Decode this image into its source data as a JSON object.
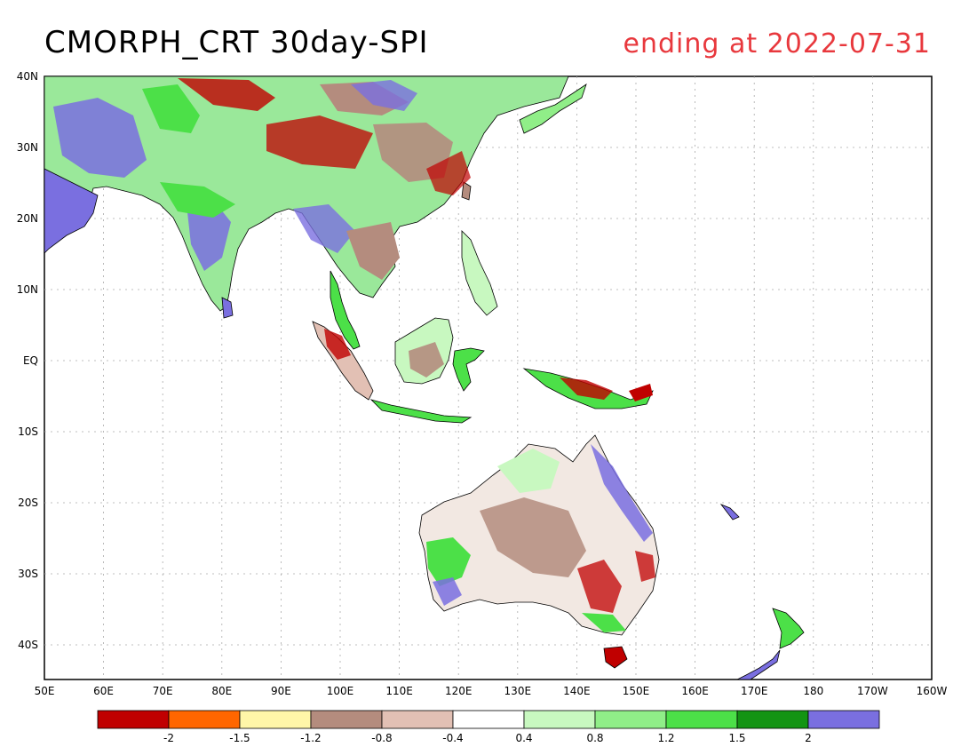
{
  "title": "CMORPH_CRT 30day-SPI",
  "subtitle": "ending at 2022-07-31",
  "map": {
    "lon_labels": [
      "50E",
      "60E",
      "70E",
      "80E",
      "90E",
      "100E",
      "110E",
      "120E",
      "130E",
      "140E",
      "150E",
      "160E",
      "170E",
      "180",
      "170W",
      "160W"
    ],
    "lat_labels": [
      "40N",
      "30N",
      "20N",
      "10N",
      "EQ",
      "10S",
      "20S",
      "30S",
      "40S"
    ]
  },
  "legend": {
    "colors": [
      "#c00000",
      "#ff6600",
      "#fff6a8",
      "#b48c7e",
      "#e2c0b4",
      "#ffffff",
      "#c8f8c0",
      "#90ee88",
      "#4ce048",
      "#139413",
      "#7a6fe0"
    ],
    "labels": [
      "-2",
      "-1.5",
      "-1.2",
      "-0.8",
      "-0.4",
      "0.4",
      "0.8",
      "1.2",
      "1.5",
      "2"
    ]
  }
}
